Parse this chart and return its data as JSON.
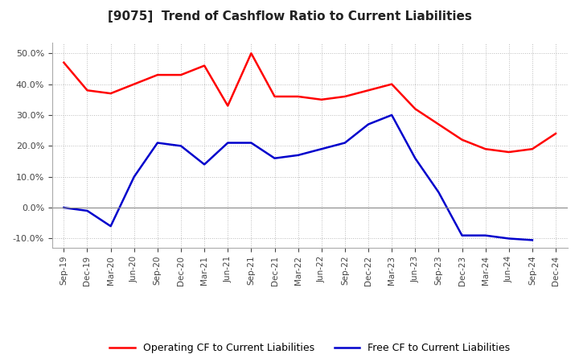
{
  "title": "[9075]  Trend of Cashflow Ratio to Current Liabilities",
  "x_labels": [
    "Sep-19",
    "Dec-19",
    "Mar-20",
    "Jun-20",
    "Sep-20",
    "Dec-20",
    "Mar-21",
    "Jun-21",
    "Sep-21",
    "Dec-21",
    "Mar-22",
    "Jun-22",
    "Sep-22",
    "Dec-22",
    "Mar-23",
    "Jun-23",
    "Sep-23",
    "Dec-23",
    "Mar-24",
    "Jun-24",
    "Sep-24",
    "Dec-24"
  ],
  "operating_cf": [
    0.47,
    0.38,
    0.37,
    0.4,
    0.43,
    0.43,
    0.46,
    0.33,
    0.5,
    0.36,
    0.36,
    0.35,
    0.36,
    0.38,
    0.4,
    0.32,
    0.27,
    0.22,
    0.19,
    0.18,
    0.19,
    0.24
  ],
  "free_cf": [
    0.0,
    -0.01,
    -0.06,
    0.1,
    0.21,
    0.2,
    0.14,
    0.21,
    0.21,
    0.16,
    0.17,
    0.19,
    0.21,
    0.27,
    0.3,
    0.16,
    0.05,
    -0.09,
    -0.09,
    -0.1,
    -0.105,
    null
  ],
  "operating_color": "#FF0000",
  "free_color": "#0000CC",
  "ylim": [
    -0.13,
    0.535
  ],
  "yticks": [
    -0.1,
    0.0,
    0.1,
    0.2,
    0.3,
    0.4,
    0.5
  ],
  "background_color": "#FFFFFF",
  "grid_color": "#AAAAAA",
  "title_fontsize": 11,
  "legend_labels": [
    "Operating CF to Current Liabilities",
    "Free CF to Current Liabilities"
  ]
}
